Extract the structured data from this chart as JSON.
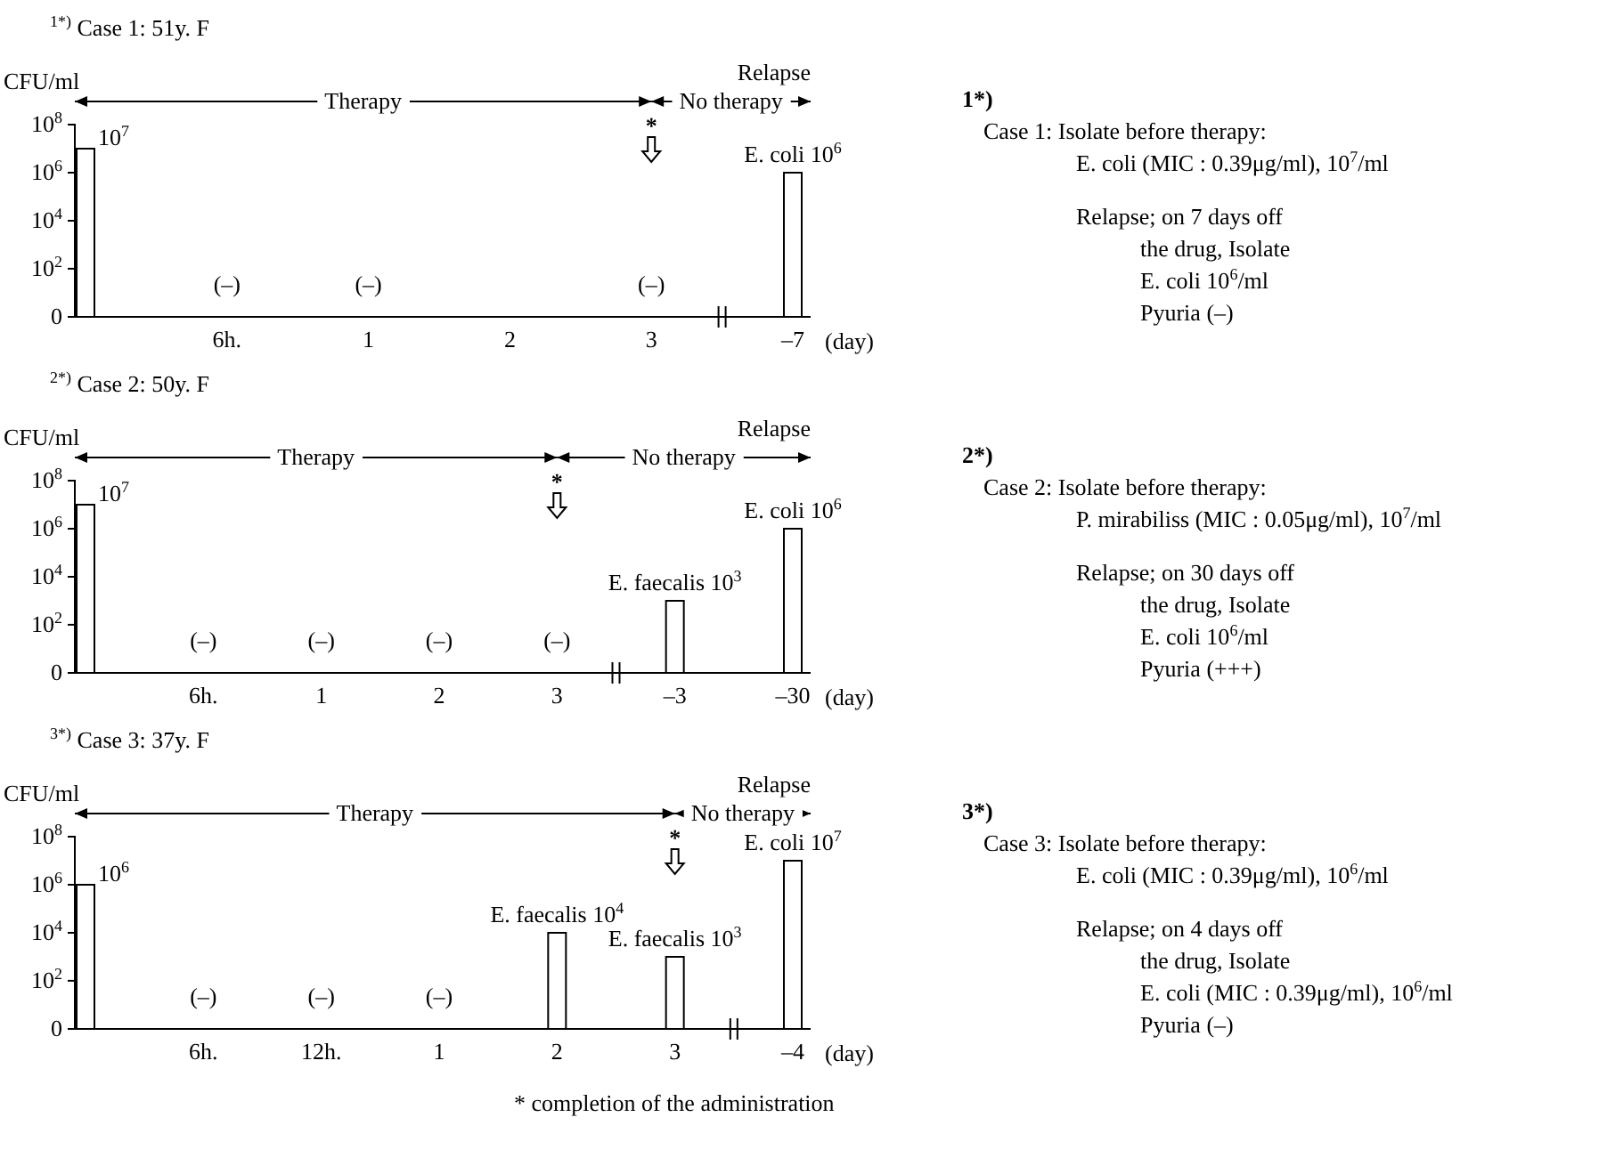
{
  "chart_data": [
    {
      "type": "bar",
      "title": "$^{1*)}$ Case 1: 51y. F",
      "ylabel": "CFU/ml",
      "xlabel": "(day)",
      "log": true,
      "color": "#ffffff",
      "categories": [
        null,
        "6h.",
        "1",
        "2",
        "3",
        "–7"
      ],
      "values": [
        10000000,
        null,
        null,
        null,
        null,
        1000000
      ],
      "value_labels": [
        "10$^{7}$",
        "(–)",
        "(–)",
        null,
        "(–)",
        "E. coli 10$^{6}$"
      ],
      "ylim": [
        0,
        100000000
      ],
      "yticks": [
        {
          "value": 0,
          "label": "0"
        },
        {
          "value": 100,
          "label": "10$^{2}$"
        },
        {
          "value": 10000,
          "label": "10$^{4}$"
        },
        {
          "value": 1000000,
          "label": "10$^{6}$"
        },
        {
          "value": 100000000,
          "label": "10$^{8}$"
        }
      ],
      "annotations": [
        "Therapy",
        "No therapy",
        "Relapse",
        "*"
      ]
    },
    {
      "type": "other",
      "title": "1*)",
      "annotations": [
        "Case 1: Isolate before therapy:",
        "E. coli (MIC : 0.39μg/ml), 10$^{7}$/ml",
        "Relapse; on 7 days off",
        "the drug, Isolate",
        "E. coli 10$^{6}$/ml",
        "Pyuria (–)"
      ]
    },
    {
      "type": "bar",
      "title": "$^{2*)}$ Case 2: 50y. F",
      "ylabel": "CFU/ml",
      "xlabel": "(day)",
      "log": true,
      "color": "#ffffff",
      "categories": [
        null,
        "6h.",
        "1",
        "2",
        "3",
        "–3",
        "–30"
      ],
      "values": [
        10000000,
        null,
        null,
        null,
        null,
        1000,
        1000000
      ],
      "value_labels": [
        "10$^{7}$",
        "(–)",
        "(–)",
        "(–)",
        "(–)",
        "E. faecalis 10$^{3}$",
        "E. coli 10$^{6}$"
      ],
      "ylim": [
        0,
        100000000
      ],
      "yticks": [
        {
          "value": 0,
          "label": "0"
        },
        {
          "value": 100,
          "label": "10$^{2}$"
        },
        {
          "value": 10000,
          "label": "10$^{4}$"
        },
        {
          "value": 1000000,
          "label": "10$^{6}$"
        },
        {
          "value": 100000000,
          "label": "10$^{8}$"
        }
      ],
      "annotations": [
        "Therapy",
        "No therapy",
        "Relapse",
        "*"
      ]
    },
    {
      "type": "other",
      "title": "2*)",
      "annotations": [
        "Case 2: Isolate before therapy:",
        "P. mirabiliss (MIC : 0.05μg/ml), 10$^{7}$/ml",
        "Relapse; on 30 days off",
        "the drug, Isolate",
        "E. coli 10$^{6}$/ml",
        "Pyuria (+++)"
      ]
    },
    {
      "type": "bar",
      "title": "$^{3*)}$ Case 3: 37y. F",
      "ylabel": "CFU/ml",
      "xlabel": "(day)",
      "log": true,
      "color": "#ffffff",
      "categories": [
        null,
        "6h.",
        "12h.",
        "1",
        "2",
        "3",
        "–4"
      ],
      "values": [
        1000000,
        null,
        null,
        null,
        10000,
        1000,
        10000000
      ],
      "value_labels": [
        "10$^{6}$",
        "(–)",
        "(–)",
        "(–)",
        "E. faecalis 10$^{4}$",
        "E. faecalis 10$^{3}$",
        "E. coli 10$^{7}$"
      ],
      "ylim": [
        0,
        100000000
      ],
      "yticks": [
        {
          "value": 0,
          "label": "0"
        },
        {
          "value": 100,
          "label": "10$^{2}$"
        },
        {
          "value": 10000,
          "label": "10$^{4}$"
        },
        {
          "value": 1000000,
          "label": "10$^{6}$"
        },
        {
          "value": 100000000,
          "label": "10$^{8}$"
        }
      ],
      "annotations": [
        "Therapy",
        "No therapy",
        "Relapse",
        "*",
        "* completion of the administration"
      ]
    },
    {
      "type": "other",
      "title": "3*)",
      "annotations": [
        "Case 3: Isolate before therapy:",
        "E. coli (MIC : 0.39μg/ml), 10$^{6}$/ml",
        "Relapse; on 4 days off",
        "the drug, Isolate",
        "E. coli (MIC : 0.39μg/ml), 10$^{6}$/ml",
        "Pyuria (–)"
      ]
    }
  ]
}
